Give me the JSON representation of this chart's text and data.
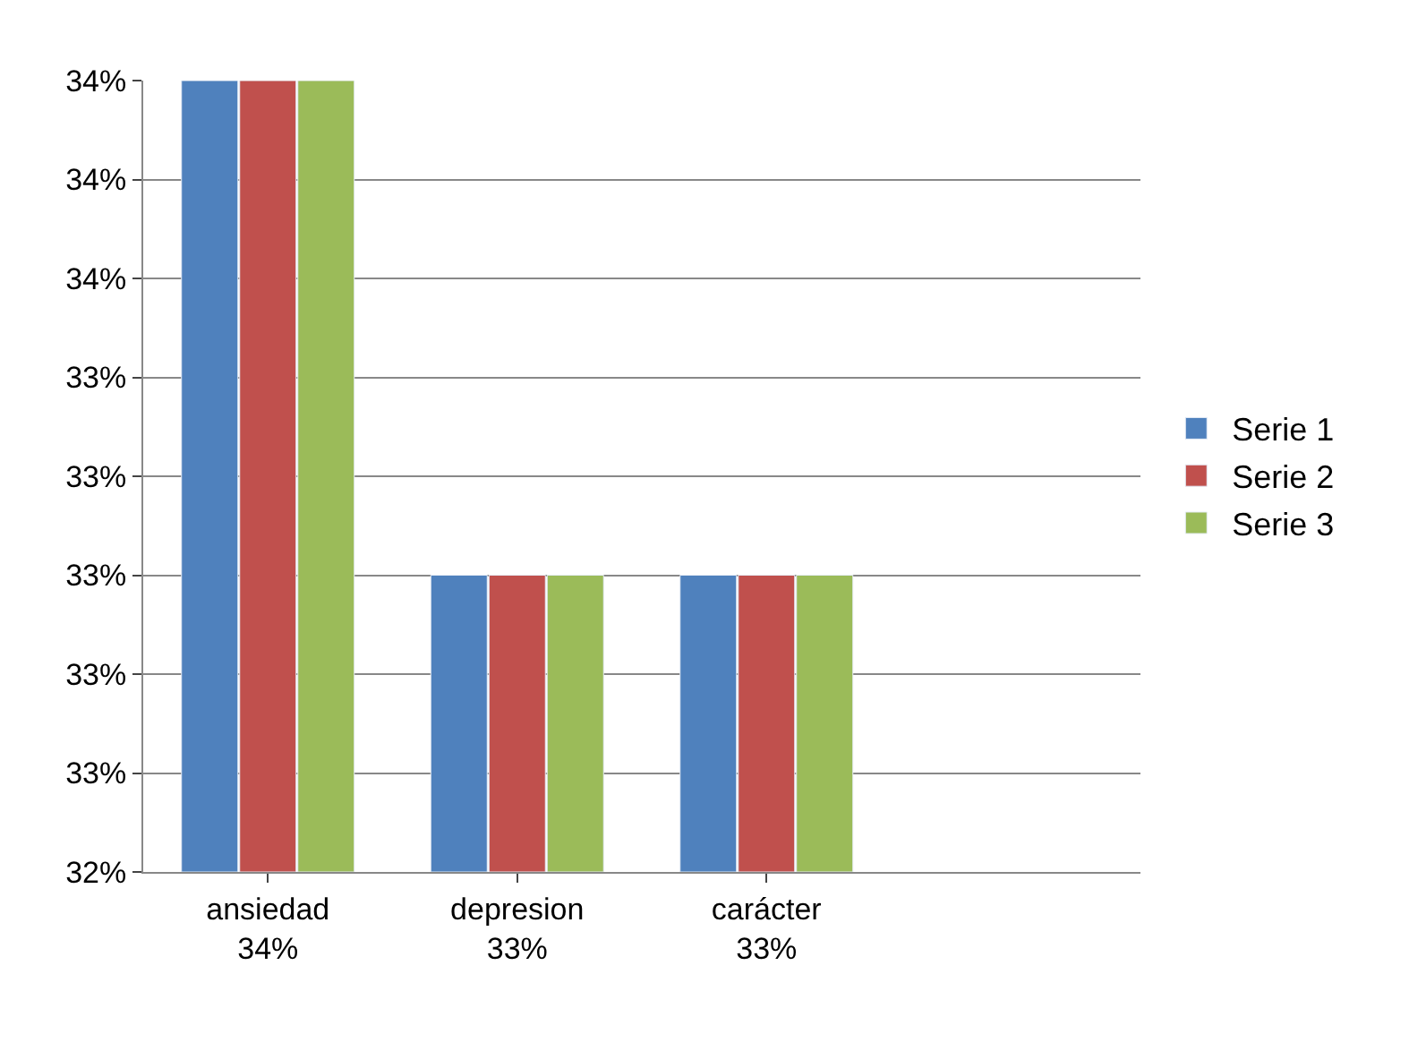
{
  "chart_data": {
    "type": "bar",
    "categories": [
      "ansiedad\n34%",
      "depresion\n33%",
      "carácter\n33%",
      null
    ],
    "series": [
      {
        "name": "Serie 1",
        "color": "#4f81bd",
        "values": [
          34,
          33,
          33,
          null
        ]
      },
      {
        "name": "Serie 2",
        "color": "#c0504d",
        "values": [
          34,
          33,
          33,
          null
        ]
      },
      {
        "name": "Serie 3",
        "color": "#9bbb59",
        "values": [
          34,
          33,
          33,
          null
        ]
      }
    ],
    "ylim": [
      32.4,
      34.0
    ],
    "yticks": [
      {
        "value": 32.4,
        "label": "32%"
      },
      {
        "value": 32.6,
        "label": "33%"
      },
      {
        "value": 32.8,
        "label": "33%"
      },
      {
        "value": 33.0,
        "label": "33%"
      },
      {
        "value": 33.2,
        "label": "33%"
      },
      {
        "value": 33.4,
        "label": "33%"
      },
      {
        "value": 33.6,
        "label": "34%"
      },
      {
        "value": 33.8,
        "label": "34%"
      },
      {
        "value": 34.0,
        "label": "34%"
      }
    ],
    "grid": "y",
    "legend": "right"
  }
}
